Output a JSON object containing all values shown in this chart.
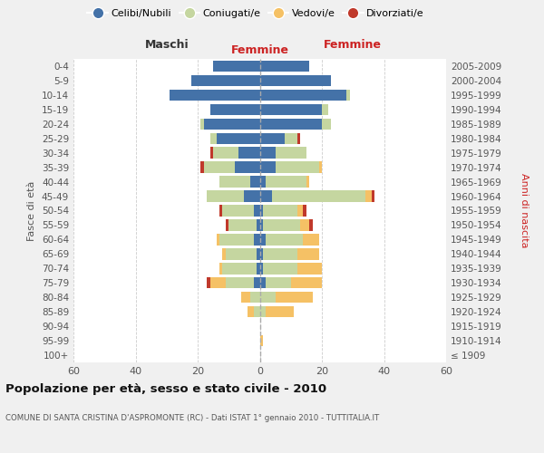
{
  "age_groups": [
    "100+",
    "95-99",
    "90-94",
    "85-89",
    "80-84",
    "75-79",
    "70-74",
    "65-69",
    "60-64",
    "55-59",
    "50-54",
    "45-49",
    "40-44",
    "35-39",
    "30-34",
    "25-29",
    "20-24",
    "15-19",
    "10-14",
    "5-9",
    "0-4"
  ],
  "birth_years": [
    "≤ 1909",
    "1910-1914",
    "1915-1919",
    "1920-1924",
    "1925-1929",
    "1930-1934",
    "1935-1939",
    "1940-1944",
    "1945-1949",
    "1950-1954",
    "1955-1959",
    "1960-1964",
    "1965-1969",
    "1970-1974",
    "1975-1979",
    "1980-1984",
    "1985-1989",
    "1990-1994",
    "1995-1999",
    "2000-2004",
    "2005-2009"
  ],
  "maschi": {
    "celibi": [
      0,
      0,
      0,
      0,
      0,
      2,
      1,
      1,
      2,
      1,
      2,
      5,
      3,
      8,
      7,
      14,
      18,
      16,
      29,
      22,
      15
    ],
    "coniugati": [
      0,
      0,
      0,
      2,
      3,
      9,
      11,
      10,
      11,
      9,
      10,
      12,
      10,
      10,
      8,
      2,
      1,
      0,
      0,
      0,
      0
    ],
    "vedovi": [
      0,
      0,
      0,
      2,
      3,
      5,
      1,
      1,
      1,
      0,
      0,
      0,
      0,
      0,
      0,
      0,
      0,
      0,
      0,
      0,
      0
    ],
    "divorziati": [
      0,
      0,
      0,
      0,
      0,
      1,
      0,
      0,
      0,
      1,
      1,
      0,
      0,
      1,
      1,
      0,
      0,
      0,
      0,
      0,
      0
    ]
  },
  "femmine": {
    "nubili": [
      0,
      0,
      0,
      0,
      0,
      2,
      1,
      1,
      2,
      1,
      1,
      4,
      2,
      5,
      5,
      8,
      20,
      20,
      28,
      23,
      16
    ],
    "coniugate": [
      0,
      0,
      0,
      2,
      5,
      8,
      11,
      11,
      12,
      12,
      11,
      30,
      13,
      14,
      10,
      4,
      3,
      2,
      1,
      0,
      0
    ],
    "vedove": [
      0,
      1,
      0,
      9,
      12,
      10,
      8,
      7,
      5,
      3,
      2,
      2,
      1,
      1,
      0,
      0,
      0,
      0,
      0,
      0,
      0
    ],
    "divorziate": [
      0,
      0,
      0,
      0,
      0,
      0,
      0,
      0,
      0,
      1,
      1,
      1,
      0,
      0,
      0,
      1,
      0,
      0,
      0,
      0,
      0
    ]
  },
  "colors": {
    "celibi_nubili": "#4472a8",
    "coniugati": "#c5d6a0",
    "vedovi": "#f5c165",
    "divorziati": "#c0392b"
  },
  "xlim": 60,
  "title": "Popolazione per età, sesso e stato civile - 2010",
  "subtitle": "COMUNE DI SANTA CRISTINA D'ASPROMONTE (RC) - Dati ISTAT 1° gennaio 2010 - TUTTITALIA.IT",
  "ylabel_left": "Fasce di età",
  "ylabel_right": "Anni di nascita",
  "xlabel_left": "Maschi",
  "xlabel_right": "Femmine",
  "bg_color": "#f0f0f0",
  "plot_bg_color": "#ffffff"
}
